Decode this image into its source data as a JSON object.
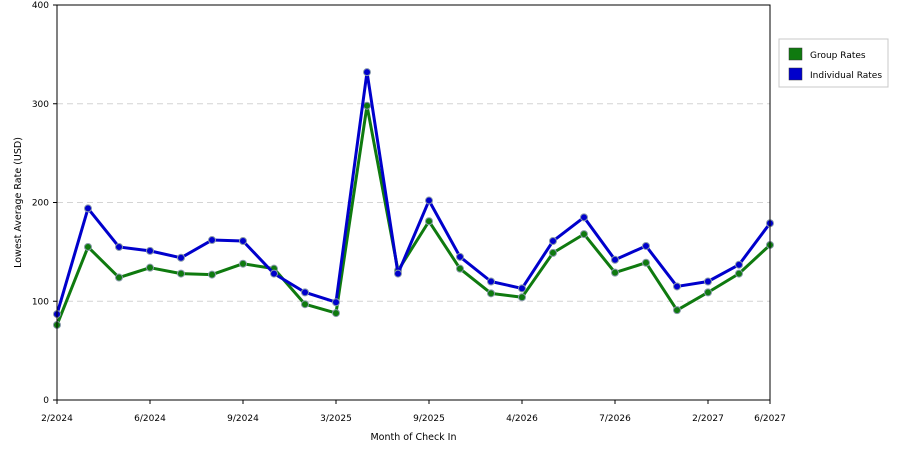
{
  "chart_data": {
    "type": "line",
    "title": "",
    "xlabel": "Month of Check In",
    "ylabel": "Lowest Average Rate (USD)",
    "ylim": [
      0,
      400
    ],
    "yticks": [
      0,
      100,
      200,
      300,
      400
    ],
    "grid": "horizontal dashed",
    "legend_position": "right",
    "x_tick_labels": [
      "2/2024",
      "6/2024",
      "9/2024",
      "3/2025",
      "9/2025",
      "4/2026",
      "7/2026",
      "2/2027",
      "6/2027"
    ],
    "x_tick_index": [
      0,
      3,
      6,
      9,
      12,
      15,
      18,
      21,
      23
    ],
    "num_points": 24,
    "series": [
      {
        "name": "Group Rates",
        "color": "#0f7a0f",
        "values": [
          76,
          155,
          124,
          134,
          128,
          127,
          138,
          133,
          97,
          88,
          298,
          131,
          181,
          133,
          108,
          104,
          149,
          168,
          129,
          139,
          91,
          109,
          128,
          157
        ]
      },
      {
        "name": "Individual Rates",
        "color": "#0000cc",
        "values": [
          87,
          194,
          155,
          151,
          144,
          162,
          161,
          128,
          109,
          99,
          332,
          128,
          202,
          145,
          120,
          113,
          161,
          185,
          142,
          156,
          115,
          120,
          137,
          179
        ]
      }
    ]
  }
}
